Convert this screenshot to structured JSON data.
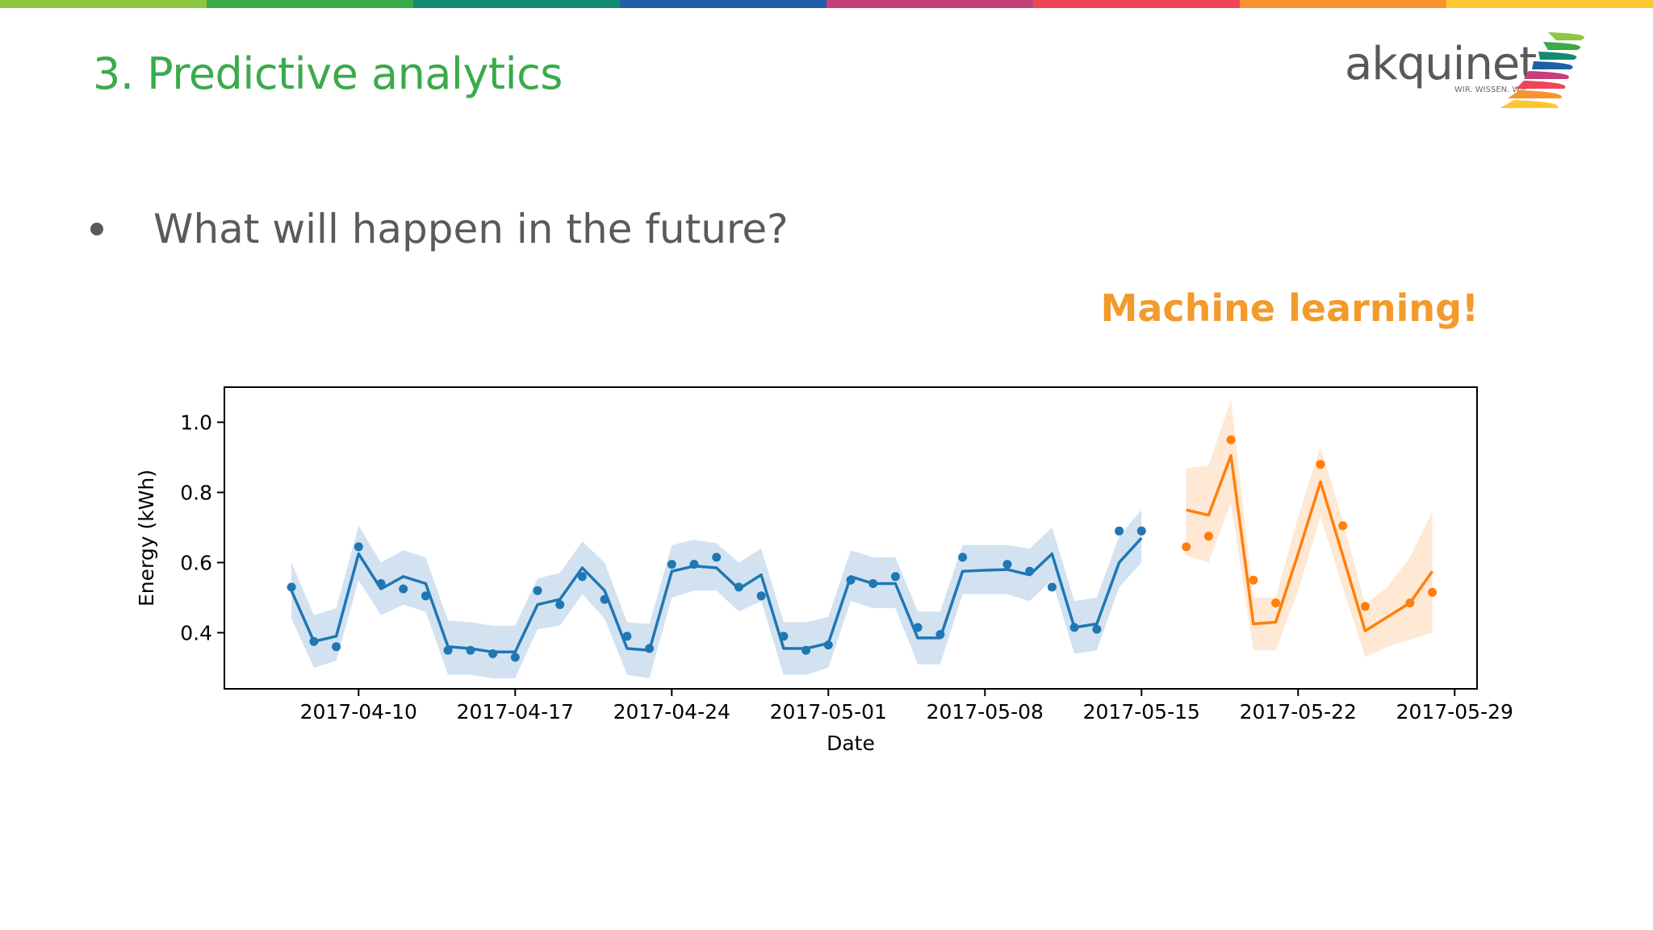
{
  "slide": {
    "title": "3. Predictive analytics",
    "bullet": "What will happen in the future?",
    "highlight": "Machine learning!",
    "topbar_colors": [
      "#8dc63f",
      "#3aaa4a",
      "#138a72",
      "#1f5fa8",
      "#c3407a",
      "#ee4657",
      "#f7932f",
      "#fdc82f"
    ]
  },
  "logo": {
    "wordmark": "akquinet",
    "tagline": "WIR. WISSEN. WIE.",
    "stripe_colors": [
      "#8dc63f",
      "#3aaa4a",
      "#138a72",
      "#1f5fa8",
      "#c3407a",
      "#ee4657",
      "#f7932f",
      "#fdc82f"
    ]
  },
  "chart_data": {
    "type": "line",
    "xlabel": "Date",
    "ylabel": "Energy (kWh)",
    "x_range": [
      "2017-04-04",
      "2017-05-30"
    ],
    "ylim": [
      0.24,
      1.1
    ],
    "x_ticks": [
      "2017-04-10",
      "2017-04-17",
      "2017-04-24",
      "2017-05-01",
      "2017-05-08",
      "2017-05-15",
      "2017-05-22",
      "2017-05-29"
    ],
    "y_ticks": [
      "0.4",
      "0.6",
      "0.8",
      "1.0"
    ],
    "grid": false,
    "legend": "none",
    "series": [
      {
        "color": "#1f77b4",
        "band_color": "#aecbe6",
        "x": [
          "2017-04-07",
          "2017-04-08",
          "2017-04-09",
          "2017-04-10",
          "2017-04-11",
          "2017-04-12",
          "2017-04-13",
          "2017-04-14",
          "2017-04-15",
          "2017-04-16",
          "2017-04-17",
          "2017-04-18",
          "2017-04-19",
          "2017-04-20",
          "2017-04-21",
          "2017-04-22",
          "2017-04-23",
          "2017-04-24",
          "2017-04-25",
          "2017-04-26",
          "2017-04-27",
          "2017-04-28",
          "2017-04-29",
          "2017-04-30",
          "2017-05-01",
          "2017-05-02",
          "2017-05-03",
          "2017-05-04",
          "2017-05-05",
          "2017-05-06",
          "2017-05-07",
          "2017-05-08",
          "2017-05-09",
          "2017-05-10",
          "2017-05-11",
          "2017-05-12",
          "2017-05-13",
          "2017-05-14",
          "2017-05-15",
          "2017-05-16"
        ],
        "observed": [
          0.53,
          0.375,
          0.36,
          0.645,
          0.54,
          0.525,
          0.505,
          0.35,
          0.35,
          0.34,
          0.33,
          0.52,
          0.48,
          0.56,
          0.495,
          0.39,
          0.355,
          0.595,
          0.595,
          0.615,
          0.53,
          0.505,
          0.39,
          0.35,
          0.365,
          0.55,
          0.54,
          0.56,
          0.415,
          0.395,
          0.615,
          null,
          0.595,
          0.575,
          0.53,
          0.415,
          0.41,
          0.69,
          0.69,
          null
        ],
        "fitted": [
          0.52,
          0.375,
          0.39,
          0.625,
          0.525,
          0.56,
          0.54,
          0.36,
          0.355,
          0.345,
          0.345,
          0.48,
          0.495,
          0.585,
          0.52,
          0.355,
          0.35,
          0.575,
          0.59,
          0.585,
          0.525,
          0.565,
          0.355,
          0.355,
          0.37,
          0.56,
          0.54,
          0.54,
          0.385,
          0.385,
          0.575,
          0.578,
          0.58,
          0.565,
          0.625,
          0.415,
          0.425,
          0.6,
          0.67,
          null
        ],
        "lower": [
          0.44,
          0.3,
          0.32,
          0.55,
          0.45,
          0.48,
          0.46,
          0.28,
          0.28,
          0.27,
          0.27,
          0.41,
          0.42,
          0.51,
          0.44,
          0.28,
          0.27,
          0.5,
          0.52,
          0.52,
          0.46,
          0.49,
          0.28,
          0.28,
          0.3,
          0.49,
          0.47,
          0.47,
          0.31,
          0.31,
          0.51,
          0.51,
          0.51,
          0.49,
          0.55,
          0.34,
          0.35,
          0.53,
          0.6,
          null
        ],
        "upper": [
          0.6,
          0.45,
          0.47,
          0.705,
          0.6,
          0.635,
          0.615,
          0.435,
          0.43,
          0.42,
          0.42,
          0.555,
          0.57,
          0.66,
          0.6,
          0.43,
          0.425,
          0.65,
          0.665,
          0.655,
          0.6,
          0.64,
          0.43,
          0.43,
          0.445,
          0.635,
          0.615,
          0.615,
          0.46,
          0.46,
          0.65,
          0.65,
          0.65,
          0.64,
          0.7,
          0.49,
          0.5,
          0.675,
          0.75,
          null
        ]
      },
      {
        "color": "#ff7f0e",
        "band_color": "#ffd5b0",
        "x": [
          "2017-05-17",
          "2017-05-18",
          "2017-05-19",
          "2017-05-20",
          "2017-05-21",
          "2017-05-22",
          "2017-05-23",
          "2017-05-24",
          "2017-05-25",
          "2017-05-26",
          "2017-05-27",
          "2017-05-28"
        ],
        "observed": [
          0.645,
          0.675,
          0.95,
          0.55,
          0.485,
          null,
          0.88,
          0.705,
          0.475,
          null,
          0.485,
          0.515
        ],
        "fitted": [
          0.75,
          0.735,
          0.905,
          0.425,
          0.43,
          0.625,
          0.83,
          0.62,
          0.405,
          0.445,
          0.485,
          0.575
        ],
        "lower": [
          0.62,
          0.6,
          0.77,
          0.35,
          0.35,
          0.52,
          0.73,
          0.53,
          0.33,
          0.36,
          0.38,
          0.4
        ],
        "upper": [
          0.87,
          0.875,
          1.065,
          0.5,
          0.5,
          0.73,
          0.93,
          0.72,
          0.48,
          0.53,
          0.615,
          0.745
        ]
      }
    ]
  }
}
